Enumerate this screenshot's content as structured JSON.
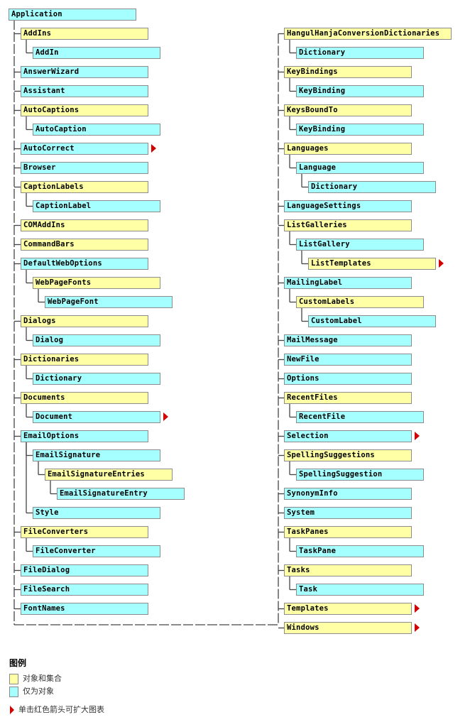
{
  "colors": {
    "collection": "#ffffa6",
    "object": "#a6ffff",
    "arrow": "#d00000"
  },
  "root": {
    "label": "Application",
    "type": "object"
  },
  "left": [
    {
      "label": "AddIns",
      "level": 1,
      "type": "collection"
    },
    {
      "label": "AddIn",
      "level": 2,
      "type": "object"
    },
    {
      "label": "AnswerWizard",
      "level": 1,
      "type": "object"
    },
    {
      "label": "Assistant",
      "level": 1,
      "type": "object"
    },
    {
      "label": "AutoCaptions",
      "level": 1,
      "type": "collection"
    },
    {
      "label": "AutoCaption",
      "level": 2,
      "type": "object"
    },
    {
      "label": "AutoCorrect",
      "level": 1,
      "type": "object",
      "expand": true
    },
    {
      "label": "Browser",
      "level": 1,
      "type": "object"
    },
    {
      "label": "CaptionLabels",
      "level": 1,
      "type": "collection"
    },
    {
      "label": "CaptionLabel",
      "level": 2,
      "type": "object"
    },
    {
      "label": "COMAddIns",
      "level": 1,
      "type": "collection"
    },
    {
      "label": "CommandBars",
      "level": 1,
      "type": "collection"
    },
    {
      "label": "DefaultWebOptions",
      "level": 1,
      "type": "object"
    },
    {
      "label": "WebPageFonts",
      "level": 2,
      "type": "collection"
    },
    {
      "label": "WebPageFont",
      "level": 3,
      "type": "object"
    },
    {
      "label": "Dialogs",
      "level": 1,
      "type": "collection"
    },
    {
      "label": "Dialog",
      "level": 2,
      "type": "object"
    },
    {
      "label": "Dictionaries",
      "level": 1,
      "type": "collection"
    },
    {
      "label": "Dictionary",
      "level": 2,
      "type": "object"
    },
    {
      "label": "Documents",
      "level": 1,
      "type": "collection"
    },
    {
      "label": "Document",
      "level": 2,
      "type": "object",
      "expand": true
    },
    {
      "label": "EmailOptions",
      "level": 1,
      "type": "object"
    },
    {
      "label": "EmailSignature",
      "level": 2,
      "type": "object"
    },
    {
      "label": "EmailSignatureEntries",
      "level": 3,
      "type": "collection"
    },
    {
      "label": "EmailSignatureEntry",
      "level": 4,
      "type": "object"
    },
    {
      "label": "Style",
      "level": 2,
      "type": "object"
    },
    {
      "label": "FileConverters",
      "level": 1,
      "type": "collection"
    },
    {
      "label": "FileConverter",
      "level": 2,
      "type": "object"
    },
    {
      "label": "FileDialog",
      "level": 1,
      "type": "object"
    },
    {
      "label": "FileSearch",
      "level": 1,
      "type": "object"
    },
    {
      "label": "FontNames",
      "level": 1,
      "type": "object"
    }
  ],
  "right": [
    {
      "label": "HangulHanjaConversionDictionaries",
      "level": 1,
      "type": "collection",
      "wide": true
    },
    {
      "label": "Dictionary",
      "level": 2,
      "type": "object"
    },
    {
      "label": "KeyBindings",
      "level": 1,
      "type": "collection"
    },
    {
      "label": "KeyBinding",
      "level": 2,
      "type": "object"
    },
    {
      "label": "KeysBoundTo",
      "level": 1,
      "type": "collection"
    },
    {
      "label": "KeyBinding",
      "level": 2,
      "type": "object"
    },
    {
      "label": "Languages",
      "level": 1,
      "type": "collection"
    },
    {
      "label": "Language",
      "level": 2,
      "type": "object"
    },
    {
      "label": "Dictionary",
      "level": 3,
      "type": "object"
    },
    {
      "label": "LanguageSettings",
      "level": 1,
      "type": "object"
    },
    {
      "label": "ListGalleries",
      "level": 1,
      "type": "collection"
    },
    {
      "label": "ListGallery",
      "level": 2,
      "type": "object"
    },
    {
      "label": "ListTemplates",
      "level": 3,
      "type": "collection",
      "expand": true
    },
    {
      "label": "MailingLabel",
      "level": 1,
      "type": "object"
    },
    {
      "label": "CustomLabels",
      "level": 2,
      "type": "collection"
    },
    {
      "label": "CustomLabel",
      "level": 3,
      "type": "object"
    },
    {
      "label": "MailMessage",
      "level": 1,
      "type": "object"
    },
    {
      "label": "NewFile",
      "level": 1,
      "type": "object"
    },
    {
      "label": "Options",
      "level": 1,
      "type": "object"
    },
    {
      "label": "RecentFiles",
      "level": 1,
      "type": "collection"
    },
    {
      "label": "RecentFile",
      "level": 2,
      "type": "object"
    },
    {
      "label": "Selection",
      "level": 1,
      "type": "object",
      "expand": true
    },
    {
      "label": "SpellingSuggestions",
      "level": 1,
      "type": "collection"
    },
    {
      "label": "SpellingSuggestion",
      "level": 2,
      "type": "object"
    },
    {
      "label": "SynonymInfo",
      "level": 1,
      "type": "object"
    },
    {
      "label": "System",
      "level": 1,
      "type": "object"
    },
    {
      "label": "TaskPanes",
      "level": 1,
      "type": "collection"
    },
    {
      "label": "TaskPane",
      "level": 2,
      "type": "object"
    },
    {
      "label": "Tasks",
      "level": 1,
      "type": "collection"
    },
    {
      "label": "Task",
      "level": 2,
      "type": "object"
    },
    {
      "label": "Templates",
      "level": 1,
      "type": "collection",
      "expand": true
    },
    {
      "label": "Windows",
      "level": 1,
      "type": "collection",
      "expand": true
    }
  ],
  "legend": {
    "title": "图例",
    "collection_label": "对象和集合",
    "object_label": "仅为对象",
    "arrow_label": "单击红色箭头可扩大图表"
  }
}
